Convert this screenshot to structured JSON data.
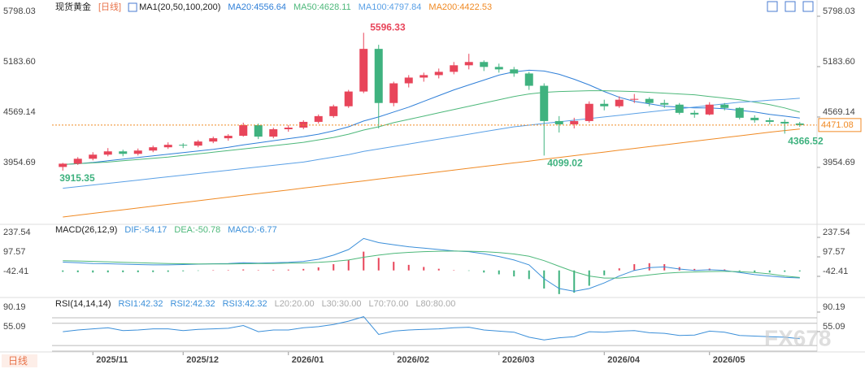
{
  "footer_button": "日线",
  "watermark": "FX678",
  "chart_data": [
    {
      "type": "candlestick",
      "title": "现货黄金",
      "period": "[日线]",
      "indicator": "MA1(20,50,100,200)",
      "categories": [
        null,
        null,
        "2025/11",
        null,
        null,
        null,
        null,
        null,
        "2025/12",
        null,
        null,
        null,
        null,
        null,
        null,
        "2026/01",
        null,
        null,
        null,
        null,
        null,
        null,
        "2026/02",
        null,
        null,
        null,
        null,
        null,
        null,
        "2026/03",
        null,
        null,
        null,
        null,
        null,
        null,
        "2026/04",
        null,
        null,
        null,
        null,
        null,
        null,
        "2026/05",
        null,
        null,
        null,
        null,
        null,
        null
      ],
      "candles": [
        [
          3960,
          4010,
          3915.35,
          4000
        ],
        [
          4000,
          4080,
          3985,
          4060
        ],
        [
          4060,
          4140,
          4040,
          4110
        ],
        [
          4110,
          4190,
          4090,
          4150
        ],
        [
          4150,
          4170,
          4090,
          4120
        ],
        [
          4120,
          4185,
          4100,
          4160
        ],
        [
          4160,
          4220,
          4140,
          4200
        ],
        [
          4200,
          4260,
          4180,
          4230
        ],
        [
          4230,
          4250,
          4190,
          4220
        ],
        [
          4220,
          4290,
          4200,
          4270
        ],
        [
          4270,
          4330,
          4250,
          4310
        ],
        [
          4310,
          4360,
          4280,
          4340
        ],
        [
          4340,
          4500,
          4330,
          4470
        ],
        [
          4470,
          4490,
          4300,
          4330
        ],
        [
          4330,
          4440,
          4310,
          4420
        ],
        [
          4420,
          4470,
          4390,
          4440
        ],
        [
          4440,
          4530,
          4420,
          4510
        ],
        [
          4510,
          4600,
          4490,
          4580
        ],
        [
          4580,
          4720,
          4560,
          4700
        ],
        [
          4700,
          4900,
          4680,
          4880
        ],
        [
          4880,
          5596.33,
          4860,
          5400
        ],
        [
          5400,
          5450,
          4430,
          4740
        ],
        [
          4740,
          5000,
          4700,
          4980
        ],
        [
          4980,
          5080,
          4930,
          5050
        ],
        [
          5050,
          5110,
          5000,
          5080
        ],
        [
          5080,
          5160,
          5040,
          5120
        ],
        [
          5120,
          5240,
          5090,
          5200
        ],
        [
          5200,
          5340,
          5150,
          5240
        ],
        [
          5240,
          5260,
          5130,
          5180
        ],
        [
          5180,
          5220,
          5110,
          5150
        ],
        [
          5150,
          5180,
          5060,
          5100
        ],
        [
          5100,
          5120,
          4900,
          4950
        ],
        [
          4950,
          4980,
          4099.02,
          4520
        ],
        [
          4520,
          4580,
          4380,
          4480
        ],
        [
          4480,
          4560,
          4430,
          4520
        ],
        [
          4520,
          4760,
          4500,
          4730
        ],
        [
          4730,
          4780,
          4650,
          4700
        ],
        [
          4700,
          4820,
          4680,
          4780
        ],
        [
          4780,
          4850,
          4740,
          4790
        ],
        [
          4790,
          4810,
          4700,
          4740
        ],
        [
          4740,
          4780,
          4680,
          4720
        ],
        [
          4720,
          4740,
          4600,
          4620
        ],
        [
          4620,
          4650,
          4560,
          4600
        ],
        [
          4600,
          4750,
          4590,
          4720
        ],
        [
          4720,
          4740,
          4650,
          4680
        ],
        [
          4680,
          4690,
          4540,
          4560
        ],
        [
          4560,
          4590,
          4500,
          4530
        ],
        [
          4530,
          4560,
          4480,
          4510
        ],
        [
          4510,
          4540,
          4366.52,
          4490
        ],
        [
          4490,
          4510,
          4450,
          4471.08
        ]
      ],
      "up_color": "#e8455a",
      "down_color": "#3fb27f",
      "series": [
        {
          "name": "MA20:4556.64",
          "color": "#2f7fd8",
          "values": [
            3990,
            4000,
            4015,
            4035,
            4055,
            4075,
            4095,
            4115,
            4135,
            4155,
            4175,
            4200,
            4230,
            4255,
            4280,
            4305,
            4330,
            4360,
            4400,
            4450,
            4520,
            4570,
            4630,
            4690,
            4760,
            4830,
            4900,
            4960,
            5020,
            5080,
            5120,
            5140,
            5130,
            5090,
            5030,
            4960,
            4880,
            4810,
            4760,
            4730,
            4700,
            4690,
            4680,
            4680,
            4670,
            4650,
            4630,
            4600,
            4580,
            4556.64
          ]
        },
        {
          "name": "MA50:4628.11",
          "color": "#4db87a",
          "values": [
            3990,
            4000,
            4010,
            4020,
            4035,
            4050,
            4065,
            4080,
            4100,
            4120,
            4140,
            4160,
            4180,
            4200,
            4220,
            4240,
            4260,
            4290,
            4320,
            4360,
            4410,
            4450,
            4500,
            4540,
            4580,
            4620,
            4660,
            4700,
            4740,
            4780,
            4820,
            4850,
            4870,
            4880,
            4885,
            4890,
            4890,
            4885,
            4880,
            4870,
            4860,
            4850,
            4840,
            4820,
            4800,
            4780,
            4750,
            4720,
            4680,
            4628.11
          ]
        },
        {
          "name": "MA100:4797.84",
          "color": "#5aa0e6",
          "values": [
            3700,
            3720,
            3740,
            3760,
            3780,
            3800,
            3820,
            3840,
            3860,
            3880,
            3900,
            3920,
            3940,
            3960,
            3980,
            4000,
            4020,
            4050,
            4080,
            4110,
            4150,
            4180,
            4210,
            4240,
            4270,
            4300,
            4330,
            4360,
            4390,
            4420,
            4450,
            4470,
            4490,
            4510,
            4530,
            4550,
            4570,
            4590,
            4610,
            4630,
            4650,
            4670,
            4690,
            4710,
            4730,
            4750,
            4760,
            4775,
            4785,
            4797.84
          ]
        },
        {
          "name": "MA200:4422.53",
          "color": "#f08a24",
          "values": [
            3350,
            3372,
            3394,
            3416,
            3438,
            3460,
            3482,
            3504,
            3526,
            3548,
            3570,
            3592,
            3614,
            3636,
            3658,
            3680,
            3702,
            3724,
            3746,
            3768,
            3790,
            3812,
            3834,
            3856,
            3878,
            3900,
            3922,
            3944,
            3966,
            3988,
            4010,
            4032,
            4054,
            4076,
            4098,
            4120,
            4142,
            4164,
            4186,
            4208,
            4230,
            4252,
            4274,
            4296,
            4318,
            4340,
            4362,
            4384,
            4404,
            4422.53
          ]
        }
      ],
      "annotations": [
        5596.33,
        4099.02,
        3915.35,
        4366.52
      ],
      "last_price": 4471.08,
      "ylim": [
        3300,
        5897
      ],
      "yticks": [
        5798.03,
        {
          "value": 5183.6,
          "label": "5183.60"
        },
        4569.14,
        3954.69
      ]
    },
    {
      "type": "macd",
      "title": "MACD(26,12,9)",
      "series": [
        {
          "name": "DIF:-54.17",
          "color": "#3b8fd9",
          "values": [
            60,
            55,
            50,
            48,
            45,
            42,
            40,
            40,
            42,
            45,
            48,
            50,
            55,
            52,
            55,
            58,
            65,
            80,
            110,
            150,
            230,
            200,
            185,
            170,
            160,
            150,
            140,
            135,
            120,
            100,
            75,
            40,
            -60,
            -130,
            -150,
            -130,
            -90,
            -40,
            0,
            20,
            25,
            10,
            0,
            5,
            0,
            -15,
            -30,
            -40,
            -50,
            -54.17
          ]
        },
        {
          "name": "DEA:-50.78",
          "color": "#4db87a",
          "values": [
            70,
            68,
            65,
            62,
            58,
            55,
            52,
            50,
            48,
            47,
            47,
            47,
            48,
            49,
            50,
            52,
            54,
            58,
            65,
            75,
            95,
            110,
            123,
            130,
            135,
            138,
            139,
            138,
            135,
            128,
            118,
            102,
            70,
            30,
            -10,
            -40,
            -55,
            -55,
            -45,
            -32,
            -20,
            -14,
            -11,
            -8,
            -7,
            -9,
            -15,
            -25,
            -40,
            -50.78
          ]
        }
      ],
      "histogram": {
        "name": "MACD:-6.77",
        "color": "#3b8fd9",
        "values": [
          -10,
          -13,
          -15,
          -14,
          -13,
          -13,
          -12,
          -10,
          -6,
          -2,
          1,
          3,
          7,
          3,
          5,
          6,
          11,
          22,
          45,
          75,
          135,
          90,
          62,
          40,
          25,
          12,
          1,
          -3,
          -15,
          -28,
          -43,
          -62,
          -130,
          -170,
          -160,
          -110,
          -35,
          15,
          45,
          52,
          45,
          24,
          11,
          13,
          7,
          -6,
          -15,
          -15,
          -10,
          -6.77
        ]
      },
      "ylim": [
        -171,
        308
      ],
      "yticks": [
        237.54,
        97.57,
        -42.41
      ]
    },
    {
      "type": "rsi",
      "title": "RSI(14,14,14)",
      "series": [
        {
          "name": "RSI1:42.32",
          "color": "#3b8fd9",
          "values": [
            55,
            58,
            60,
            62,
            57,
            58,
            60,
            60,
            57,
            59,
            60,
            61,
            66,
            55,
            58,
            58,
            62,
            64,
            68,
            74,
            82,
            50,
            56,
            58,
            59,
            60,
            62,
            63,
            58,
            56,
            54,
            45,
            40,
            44,
            46,
            55,
            54,
            56,
            57,
            53,
            52,
            48,
            49,
            56,
            54,
            48,
            47,
            46,
            45,
            42.32
          ]
        }
      ],
      "other_legend": [
        {
          "text": "RSI2:42.32",
          "color": "#3b8fd9"
        },
        {
          "text": "RSI3:42.32",
          "color": "#3b8fd9"
        },
        {
          "text": "L20:20.00",
          "color": "#aaaaaa"
        },
        {
          "text": "L30:30.00",
          "color": "#aaaaaa"
        },
        {
          "text": "L70:70.00",
          "color": "#aaaaaa"
        },
        {
          "text": "L80:80.00",
          "color": "#aaaaaa"
        }
      ],
      "levels": [
        20,
        30,
        70,
        80
      ],
      "ylim": [
        20,
        107.7
      ],
      "yticks": [
        90.19,
        55.09
      ]
    }
  ]
}
